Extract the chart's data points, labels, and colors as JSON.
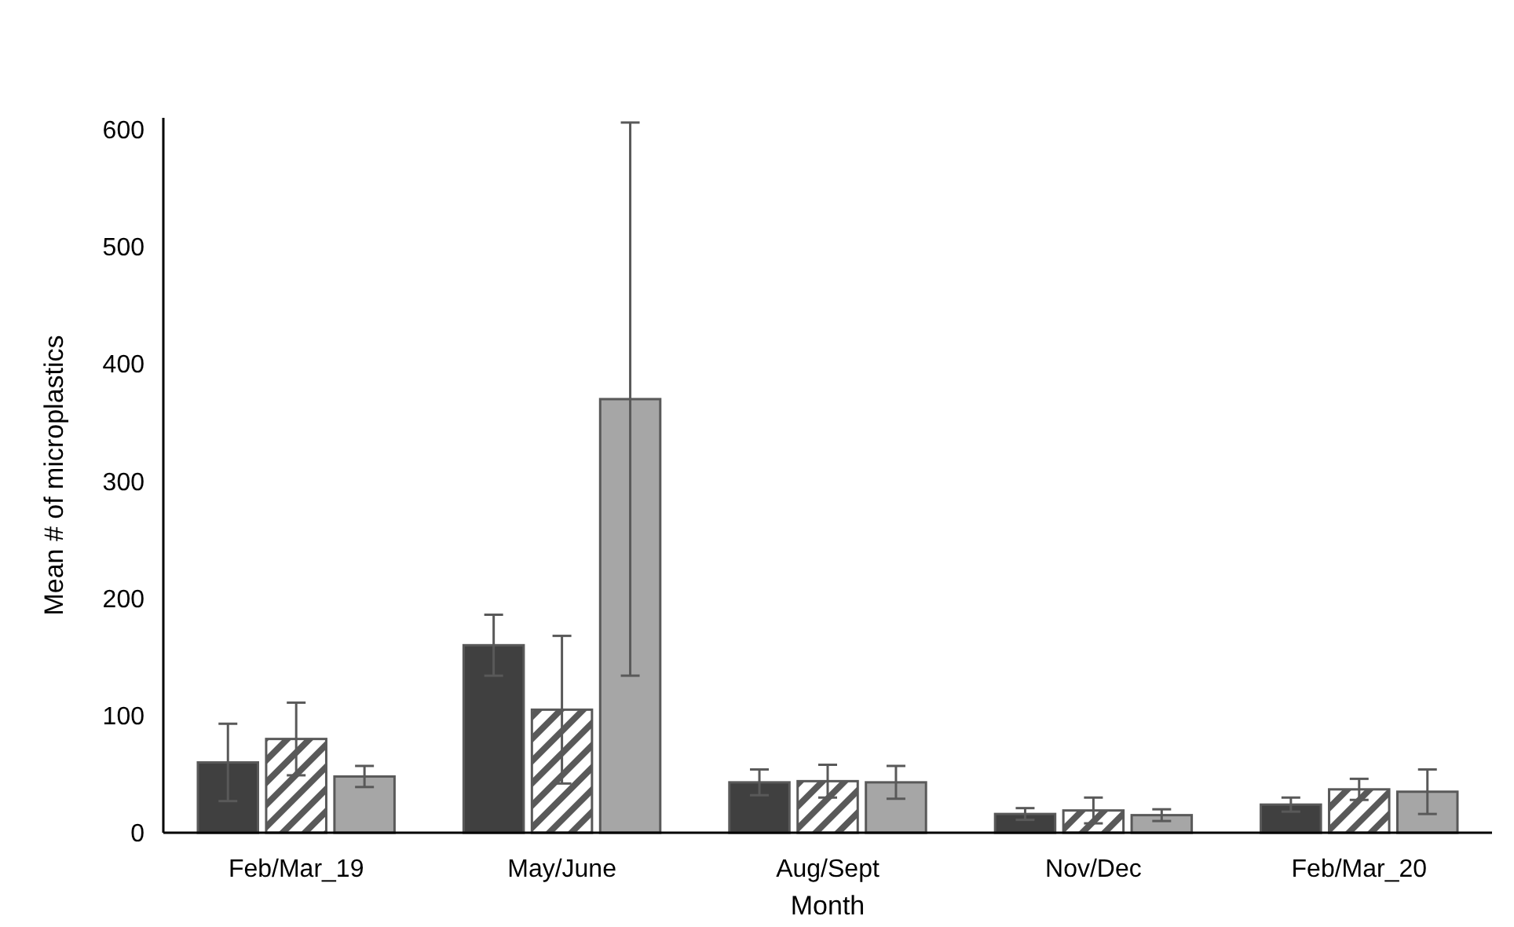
{
  "chart_data": {
    "type": "bar",
    "xlabel": "Month",
    "ylabel": "Mean # of microplastics",
    "categories": [
      "Feb/Mar_19",
      "May/June",
      "Aug/Sept",
      "Nov/Dec",
      "Feb/Mar_20"
    ],
    "series": [
      {
        "color": "#404040",
        "values": [
          60,
          160,
          43,
          16,
          24
        ],
        "errors": [
          33,
          26,
          11,
          5,
          6
        ]
      },
      {
        "color": "#595959",
        "values": [
          80,
          105,
          44,
          19,
          37
        ],
        "errors": [
          31,
          63,
          14,
          11,
          9
        ]
      },
      {
        "color": "#a6a6a6",
        "values": [
          48,
          370,
          43,
          15,
          35
        ],
        "errors": [
          9,
          236,
          14,
          5,
          19
        ]
      }
    ],
    "ylim": [
      0,
      610
    ],
    "yticks": [
      0,
      100,
      200,
      300,
      400,
      500,
      600
    ],
    "grid": false
  }
}
